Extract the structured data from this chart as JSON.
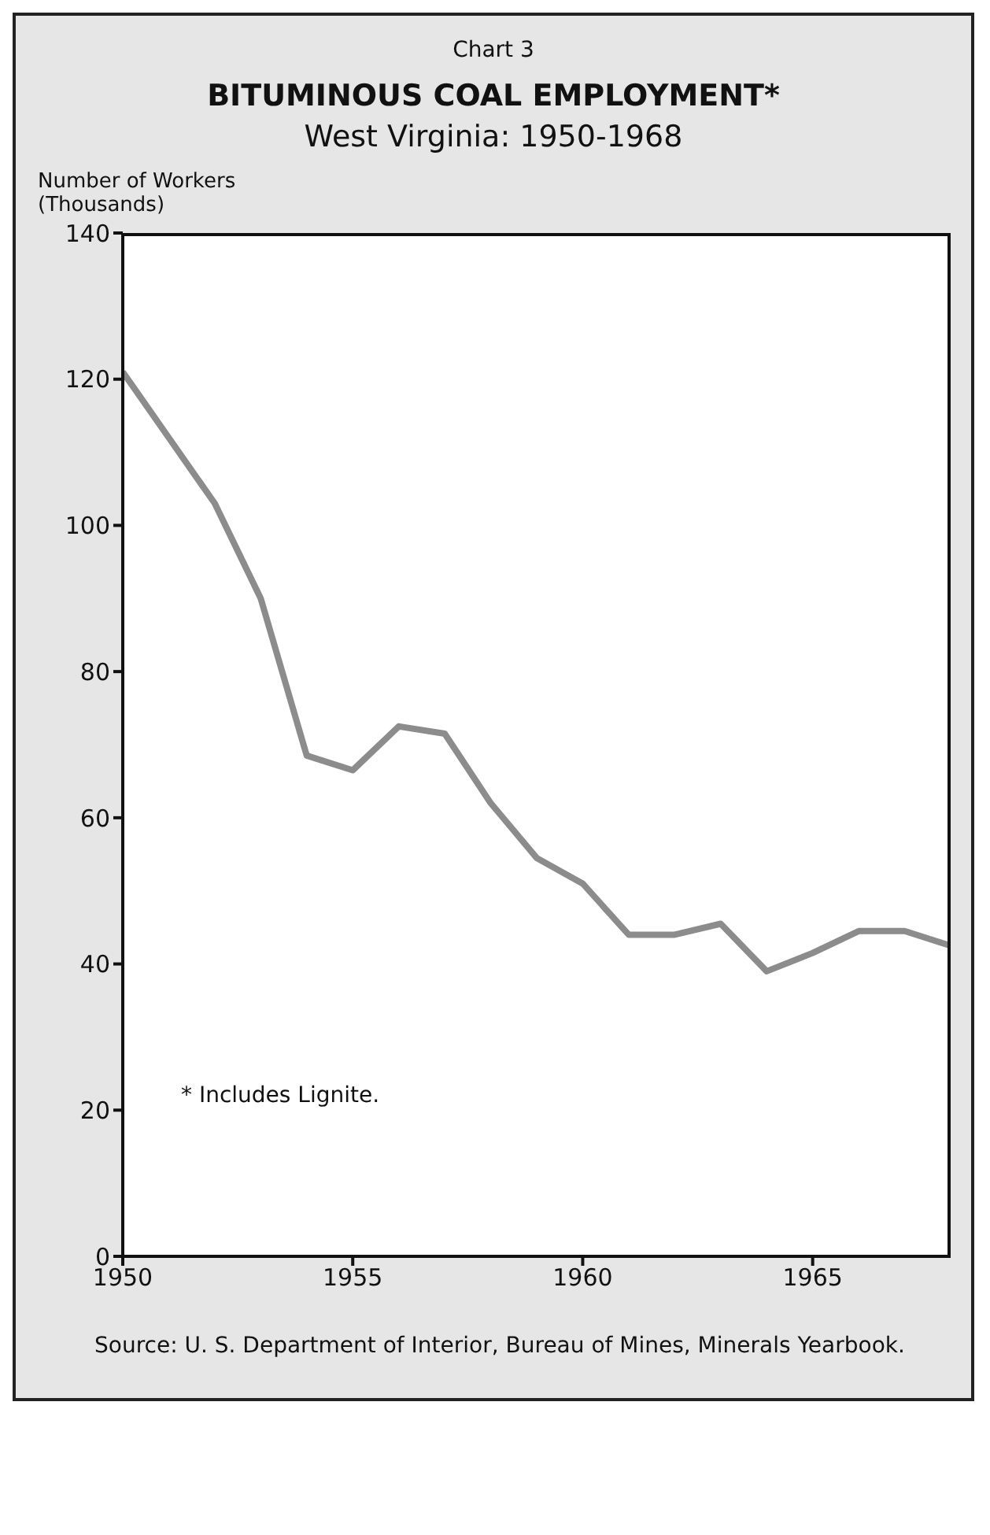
{
  "chart_data": {
    "type": "line",
    "title": "BITUMINOUS COAL EMPLOYMENT*",
    "subtitle": "West Virginia: 1950-1968",
    "ylabel": "Number of Workers (Thousands)",
    "annotations": [
      "Chart 3",
      "* Includes Lignite.",
      "Source: U. S. Department of Interior, Bureau of Mines, Minerals Yearbook."
    ],
    "x": [
      1950,
      1951,
      1952,
      1953,
      1954,
      1955,
      1956,
      1957,
      1958,
      1959,
      1960,
      1961,
      1962,
      1963,
      1964,
      1965,
      1966,
      1967,
      1968
    ],
    "series": [
      {
        "color": "#8c8c8c",
        "values": [
          121,
          112,
          103,
          90,
          68.5,
          66.5,
          72.5,
          71.5,
          62,
          54.5,
          51,
          44,
          44,
          45.5,
          39,
          41.5,
          44.5,
          44.5,
          42.5
        ]
      }
    ],
    "xlim": [
      1950,
      1968
    ],
    "xticks": [
      1950,
      1955,
      1960,
      1965
    ],
    "ylim": [
      0,
      140
    ],
    "yticks": [
      0,
      20,
      40,
      60,
      80,
      100,
      120,
      140
    ],
    "grid": false,
    "legend": false,
    "marker": "none",
    "line_style": "solid"
  }
}
